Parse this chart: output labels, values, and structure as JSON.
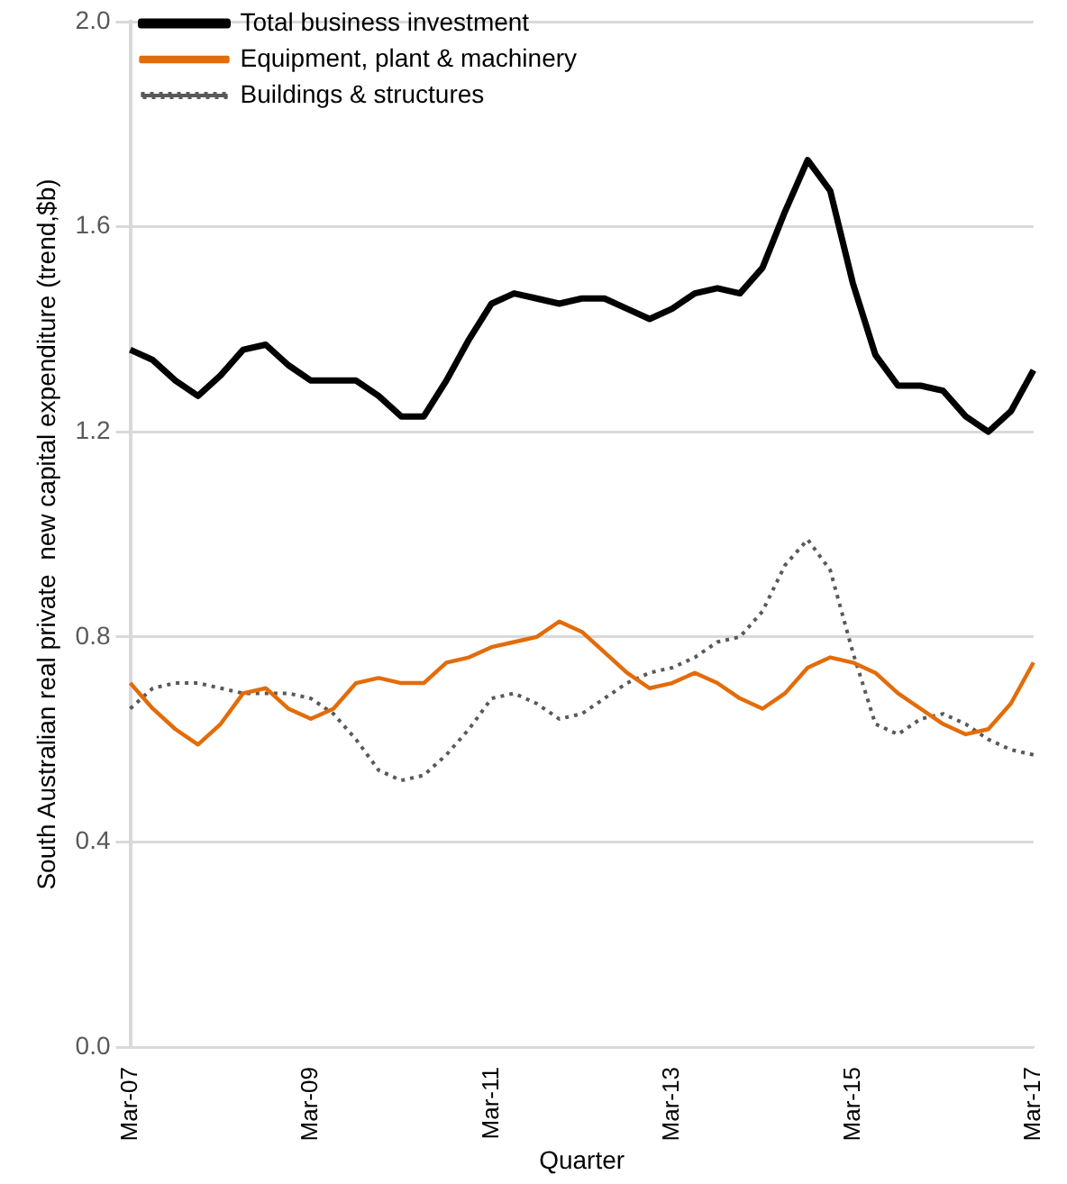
{
  "chart_data": {
    "type": "line",
    "xlabel": "Quarter",
    "ylabel": "South Australian real private  new capital expenditure (trend,$b)",
    "categories": [
      "Mar-07",
      null,
      null,
      null,
      null,
      null,
      null,
      null,
      "Mar-09",
      null,
      null,
      null,
      null,
      null,
      null,
      null,
      "Mar-11",
      null,
      null,
      null,
      null,
      null,
      null,
      null,
      "Mar-13",
      null,
      null,
      null,
      null,
      null,
      null,
      null,
      "Mar-15",
      null,
      null,
      null,
      null,
      null,
      null,
      null,
      "Mar-17"
    ],
    "series": [
      {
        "name": "Total business investment",
        "color": "#000000",
        "line_style": "solid",
        "values": [
          1.36,
          1.34,
          1.3,
          1.27,
          1.31,
          1.36,
          1.37,
          1.33,
          1.3,
          1.3,
          1.3,
          1.27,
          1.23,
          1.23,
          1.3,
          1.38,
          1.45,
          1.47,
          1.46,
          1.45,
          1.46,
          1.46,
          1.44,
          1.42,
          1.44,
          1.47,
          1.48,
          1.47,
          1.52,
          1.63,
          1.73,
          1.67,
          1.49,
          1.35,
          1.29,
          1.29,
          1.28,
          1.23,
          1.2,
          1.24,
          1.32
        ]
      },
      {
        "name": "Equipment, plant & machinery",
        "color": "#e36c09",
        "line_style": "solid",
        "values": [
          0.71,
          0.66,
          0.62,
          0.59,
          0.63,
          0.69,
          0.7,
          0.66,
          0.64,
          0.66,
          0.71,
          0.72,
          0.71,
          0.71,
          0.75,
          0.76,
          0.78,
          0.79,
          0.8,
          0.83,
          0.81,
          0.77,
          0.73,
          0.7,
          0.71,
          0.73,
          0.71,
          0.68,
          0.66,
          0.69,
          0.74,
          0.76,
          0.75,
          0.73,
          0.69,
          0.66,
          0.63,
          0.61,
          0.62,
          0.67,
          0.75
        ]
      },
      {
        "name": "Buildings & structures",
        "color": "#595959",
        "line_style": "dotted",
        "values": [
          0.66,
          0.7,
          0.71,
          0.71,
          0.7,
          0.69,
          0.69,
          0.69,
          0.68,
          0.65,
          0.6,
          0.54,
          0.52,
          0.53,
          0.57,
          0.62,
          0.68,
          0.69,
          0.67,
          0.64,
          0.65,
          0.68,
          0.71,
          0.73,
          0.74,
          0.76,
          0.79,
          0.8,
          0.85,
          0.94,
          0.99,
          0.93,
          0.77,
          0.63,
          0.61,
          0.64,
          0.65,
          0.63,
          0.6,
          0.58,
          0.57
        ]
      }
    ],
    "ylim": [
      0,
      2
    ],
    "yticks": [
      {
        "value": 0,
        "label": "0.0"
      },
      {
        "value": 0.4,
        "label": "0.4"
      },
      {
        "value": 0.8,
        "label": "0.8"
      },
      {
        "value": 1.2,
        "label": "1.2"
      },
      {
        "value": 1.6,
        "label": "1.6"
      },
      {
        "value": 2,
        "label": "2.0"
      }
    ],
    "grid": "y",
    "legend": "top left",
    "marker": "none"
  }
}
